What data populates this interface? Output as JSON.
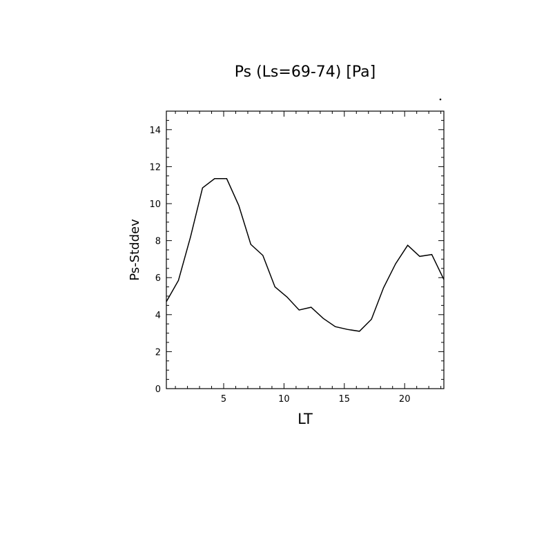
{
  "chart_data": {
    "type": "line",
    "title": "Ps (Ls=69-74) [Pa]",
    "xlabel": "LT",
    "ylabel": "Ps-Stddev",
    "xlim": [
      0.25,
      23.25
    ],
    "ylim": [
      0,
      15
    ],
    "x_ticks": [
      5,
      10,
      15,
      20
    ],
    "y_ticks": [
      0,
      2,
      4,
      6,
      8,
      10,
      12,
      14
    ],
    "grid": false,
    "series": [
      {
        "x": [
          0.25,
          1.25,
          2.25,
          3.25,
          4.25,
          5.25,
          6.25,
          7.25,
          8.25,
          9.25,
          10.25,
          11.25,
          12.25,
          13.25,
          14.25,
          15.25,
          16.25,
          17.25,
          18.25,
          19.25,
          20.25,
          21.25,
          22.25,
          23.25
        ],
        "values": [
          4.7,
          5.85,
          8.2,
          10.85,
          11.35,
          11.35,
          9.9,
          7.8,
          7.2,
          5.5,
          4.95,
          4.25,
          4.4,
          3.8,
          3.35,
          3.2,
          3.1,
          3.75,
          5.45,
          6.75,
          7.75,
          7.15,
          7.25,
          5.9
        ]
      }
    ]
  }
}
